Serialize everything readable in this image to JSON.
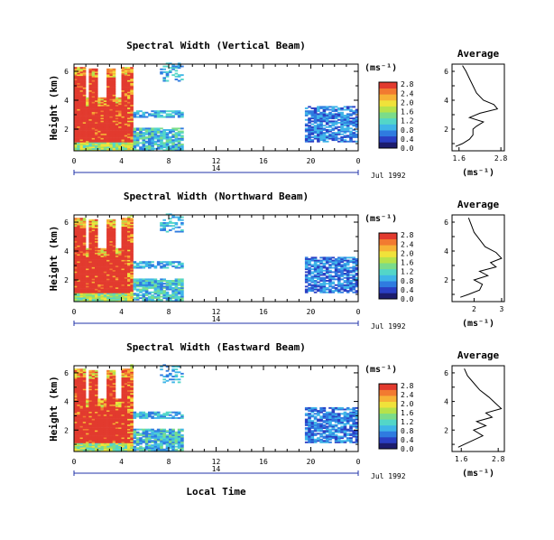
{
  "figure": {
    "xlabel": "Local Time",
    "date_label": "Jul 1992",
    "day_label": "14",
    "x_ticks": [
      "0",
      "4",
      "8",
      "12",
      "16",
      "20",
      "0"
    ],
    "avg_title": "Average"
  },
  "colorscale": [
    "#1c1c6e",
    "#2a3fc4",
    "#2f7be0",
    "#3fb5e8",
    "#53d6c8",
    "#7bdc8a",
    "#b6e24b",
    "#f0e23a",
    "#f7b236",
    "#f27a30",
    "#e23a2e"
  ],
  "chart_data": [
    {
      "type": "heatmap",
      "title": "Spectral Width (Vertical Beam)",
      "xlabel": "Local Time",
      "ylabel": "Height (km)",
      "xlim": [
        0,
        24
      ],
      "ylim": [
        0.5,
        6.5
      ],
      "y_ticks": [
        "2",
        "4",
        "6"
      ],
      "colorbar": {
        "unit": "(ms⁻¹)",
        "ticks": [
          "0.0",
          "0.4",
          "0.8",
          "1.2",
          "1.6",
          "2.0",
          "2.4",
          "2.8"
        ]
      },
      "average": {
        "x_ticks": [
          "1.6",
          "2.8"
        ],
        "xlim": [
          1.4,
          2.9
        ],
        "xlabel": "(ms⁻¹)",
        "profile": [
          [
            1.5,
            0.8
          ],
          [
            1.7,
            1.0
          ],
          [
            1.9,
            1.3
          ],
          [
            2.0,
            1.6
          ],
          [
            2.0,
            2.0
          ],
          [
            2.1,
            2.2
          ],
          [
            2.3,
            2.5
          ],
          [
            1.9,
            2.8
          ],
          [
            2.2,
            3.1
          ],
          [
            2.7,
            3.4
          ],
          [
            2.6,
            3.7
          ],
          [
            2.3,
            4.0
          ],
          [
            2.1,
            4.5
          ],
          [
            2.0,
            5.0
          ],
          [
            1.9,
            5.5
          ],
          [
            1.8,
            6.0
          ],
          [
            1.7,
            6.4
          ]
        ]
      }
    },
    {
      "type": "heatmap",
      "title": "Spectral Width (Northward Beam)",
      "xlabel": "Local Time",
      "ylabel": "Height (km)",
      "xlim": [
        0,
        24
      ],
      "ylim": [
        0.5,
        6.5
      ],
      "y_ticks": [
        "2",
        "4",
        "6"
      ],
      "colorbar": {
        "unit": "(ms⁻¹)",
        "ticks": [
          "0.0",
          "0.4",
          "0.8",
          "1.2",
          "1.6",
          "2.0",
          "2.4",
          "2.8"
        ]
      },
      "average": {
        "x_ticks": [
          "2",
          "3"
        ],
        "xlim": [
          1.2,
          3.1
        ],
        "xlabel": "(ms⁻¹)",
        "profile": [
          [
            1.5,
            0.8
          ],
          [
            1.8,
            1.0
          ],
          [
            2.2,
            1.3
          ],
          [
            2.3,
            1.7
          ],
          [
            2.0,
            2.0
          ],
          [
            2.5,
            2.3
          ],
          [
            2.2,
            2.6
          ],
          [
            2.8,
            2.9
          ],
          [
            2.6,
            3.2
          ],
          [
            3.0,
            3.5
          ],
          [
            2.8,
            3.9
          ],
          [
            2.4,
            4.3
          ],
          [
            2.2,
            4.8
          ],
          [
            2.0,
            5.3
          ],
          [
            1.9,
            5.8
          ],
          [
            1.8,
            6.3
          ]
        ]
      }
    },
    {
      "type": "heatmap",
      "title": "Spectral Width (Eastward Beam)",
      "xlabel": "Local Time",
      "ylabel": "Height (km)",
      "xlim": [
        0,
        24
      ],
      "ylim": [
        0.5,
        6.5
      ],
      "y_ticks": [
        "2",
        "4",
        "6"
      ],
      "colorbar": {
        "unit": "(ms⁻¹)",
        "ticks": [
          "0.0",
          "0.4",
          "0.8",
          "1.2",
          "1.6",
          "2.0",
          "2.4",
          "2.8"
        ]
      },
      "average": {
        "x_ticks": [
          "1.6",
          "2.8"
        ],
        "xlim": [
          1.3,
          3.0
        ],
        "xlabel": "(ms⁻¹)",
        "profile": [
          [
            1.5,
            0.8
          ],
          [
            1.7,
            1.0
          ],
          [
            2.0,
            1.3
          ],
          [
            2.3,
            1.6
          ],
          [
            2.0,
            2.0
          ],
          [
            2.4,
            2.3
          ],
          [
            2.1,
            2.6
          ],
          [
            2.6,
            2.9
          ],
          [
            2.4,
            3.2
          ],
          [
            2.9,
            3.5
          ],
          [
            2.7,
            3.9
          ],
          [
            2.5,
            4.3
          ],
          [
            2.2,
            4.8
          ],
          [
            2.0,
            5.3
          ],
          [
            1.8,
            5.8
          ],
          [
            1.7,
            6.3
          ]
        ]
      }
    }
  ]
}
